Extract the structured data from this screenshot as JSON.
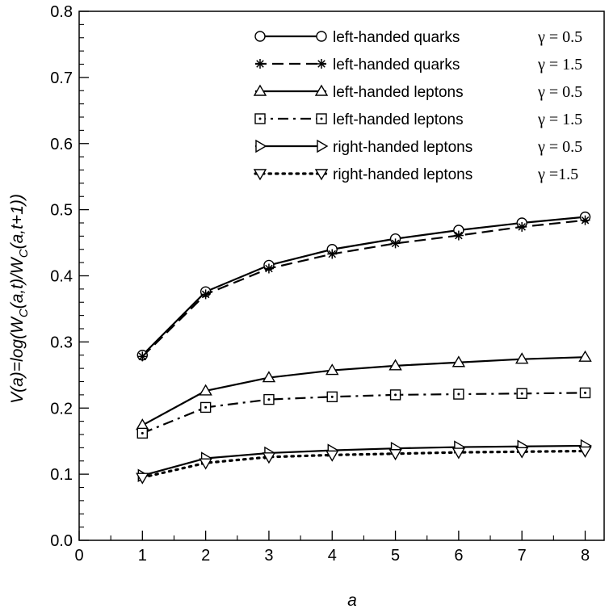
{
  "chart_data": {
    "type": "line",
    "title": "",
    "xlabel": "a",
    "ylabel_parts": {
      "prefix": "V(a)=log(W",
      "sub1": "C",
      "middle": "(a,t)/W",
      "sub2": "C",
      "suffix": "(a,t+1))"
    },
    "xlim": [
      0,
      8.3
    ],
    "ylim": [
      0,
      0.8
    ],
    "x_ticks": [
      0,
      1,
      2,
      3,
      4,
      5,
      6,
      7,
      8
    ],
    "y_ticks": [
      0.0,
      0.1,
      0.2,
      0.3,
      0.4,
      0.5,
      0.6,
      0.7,
      0.8
    ],
    "y_tick_labels": [
      "0.0",
      "0.1",
      "0.2",
      "0.3",
      "0.4",
      "0.5",
      "0.6",
      "0.7",
      "0.8"
    ],
    "grid": false,
    "legend_position": "top-right",
    "x": [
      1,
      2,
      3,
      4,
      5,
      6,
      7,
      8
    ],
    "series": [
      {
        "name": "left-handed quarks",
        "gamma": "γ = 0.5",
        "marker": "circle",
        "dash": "solid",
        "values": [
          0.28,
          0.376,
          0.416,
          0.44,
          0.456,
          0.469,
          0.48,
          0.489
        ]
      },
      {
        "name": "left-handed quarks",
        "gamma": "γ = 1.5",
        "marker": "star",
        "dash": "dashed",
        "values": [
          0.278,
          0.372,
          0.411,
          0.433,
          0.449,
          0.461,
          0.474,
          0.484
        ]
      },
      {
        "name": "left-handed leptons",
        "gamma": "γ = 0.5",
        "marker": "triangle-up",
        "dash": "solid",
        "values": [
          0.174,
          0.226,
          0.246,
          0.257,
          0.264,
          0.269,
          0.274,
          0.277
        ]
      },
      {
        "name": "left-handed leptons",
        "gamma": "γ = 1.5",
        "marker": "square-dot",
        "dash": "dashdot",
        "values": [
          0.162,
          0.201,
          0.213,
          0.217,
          0.22,
          0.221,
          0.222,
          0.223
        ]
      },
      {
        "name": "right-handed leptons",
        "gamma": "γ = 0.5",
        "marker": "triangle-right",
        "dash": "solid",
        "values": [
          0.098,
          0.124,
          0.132,
          0.136,
          0.139,
          0.141,
          0.142,
          0.143
        ]
      },
      {
        "name": "right-handed leptons",
        "gamma": "γ =1.5",
        "marker": "triangle-down",
        "dash": "dotted",
        "values": [
          0.095,
          0.117,
          0.126,
          0.129,
          0.131,
          0.133,
          0.134,
          0.135
        ]
      }
    ]
  }
}
